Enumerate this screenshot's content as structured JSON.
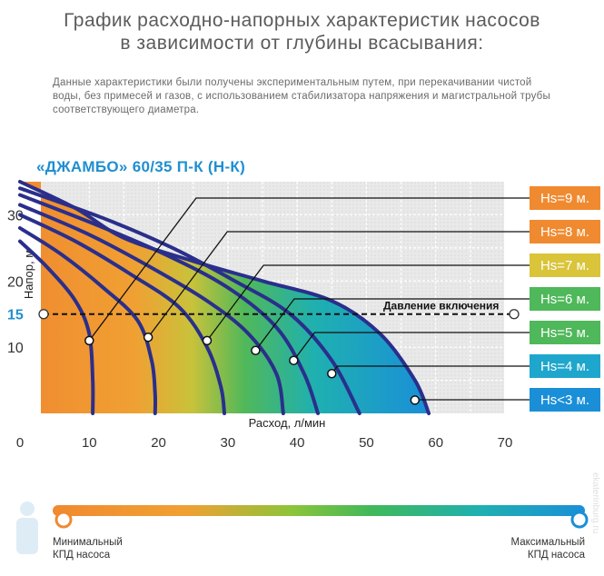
{
  "title_line1": "График расходно-напорных характеристик насосов",
  "title_line2": "в зависимости от глубины всасывания:",
  "description": "Данные характеристики были получены экспериментальным путем, при перекачивании чистой воды, без примесей и газов, с использованием стабилизатора напряжения и магистральной трубы соответствующего диаметра.",
  "model": "«ДЖАМБО» 60/35 П-К (Н-К)",
  "pressure_label": "Давление включения",
  "efficiency_min": "Минимальный\nКПД насоса",
  "efficiency_max": "Максимальный\nКПД насоса",
  "watermark": "ekaterinburg.ru",
  "colors": {
    "orange": "#f08a30",
    "yellow": "#d9c43a",
    "green": "#4fb85a",
    "cyan": "#1fa6cc",
    "blue": "#1a8fd8",
    "curve": "#2a2f8c",
    "axis_text": "#333333",
    "highlight": "#1f8fd0"
  },
  "chart_data": {
    "type": "line",
    "title": "«ДЖАМБО» 60/35 П-К (Н-К)",
    "xlabel": "Расход, л/мин",
    "ylabel": "Напор, м",
    "xlim": [
      0,
      70
    ],
    "ylim": [
      0,
      35
    ],
    "x_ticks": [
      0,
      10,
      20,
      30,
      40,
      50,
      60,
      70
    ],
    "y_ticks": [
      10,
      15,
      20,
      30
    ],
    "highlight_y": 15,
    "reference_line": {
      "y": 15,
      "label": "Давление включения",
      "style": "dashed"
    },
    "grid": true,
    "series": [
      {
        "name": "Hs=9 м.",
        "label_color": "#f08a30",
        "points": [
          [
            0,
            26
          ],
          [
            4,
            22
          ],
          [
            8,
            17
          ],
          [
            10,
            12
          ],
          [
            10.5,
            5
          ],
          [
            10.5,
            0
          ]
        ]
      },
      {
        "name": "Hs=8 м.",
        "label_color": "#f08a30",
        "points": [
          [
            0,
            28
          ],
          [
            6,
            24
          ],
          [
            12,
            19
          ],
          [
            17,
            14
          ],
          [
            19,
            8
          ],
          [
            19.5,
            3
          ],
          [
            19.5,
            0
          ]
        ]
      },
      {
        "name": "Hs=7 м.",
        "label_color": "#d9c43a",
        "points": [
          [
            0,
            30
          ],
          [
            8,
            26
          ],
          [
            16,
            21
          ],
          [
            23,
            16
          ],
          [
            27,
            10
          ],
          [
            29,
            4
          ],
          [
            29.5,
            0
          ]
        ]
      },
      {
        "name": "Hs=6 м.",
        "label_color": "#4fb85a",
        "points": [
          [
            0,
            31.5
          ],
          [
            10,
            27
          ],
          [
            19,
            22
          ],
          [
            27,
            17
          ],
          [
            33,
            12
          ],
          [
            37,
            6
          ],
          [
            38,
            0
          ]
        ]
      },
      {
        "name": "Hs=5 м.",
        "label_color": "#4fb85a",
        "points": [
          [
            0,
            33
          ],
          [
            11,
            28.5
          ],
          [
            21,
            24
          ],
          [
            30,
            19
          ],
          [
            37,
            13
          ],
          [
            41,
            6
          ],
          [
            43,
            0
          ]
        ]
      },
      {
        "name": "Hs=4 м.",
        "label_color": "#1fa6cc",
        "points": [
          [
            0,
            34
          ],
          [
            12,
            29.5
          ],
          [
            22,
            25
          ],
          [
            31,
            20
          ],
          [
            39,
            15
          ],
          [
            45,
            8
          ],
          [
            49,
            0
          ]
        ]
      },
      {
        "name": "Hs<3 м.",
        "label_color": "#1a8fd8",
        "points": [
          [
            0,
            35
          ],
          [
            8,
            31
          ],
          [
            15,
            26.5
          ],
          [
            25,
            23
          ],
          [
            35,
            20
          ],
          [
            45,
            17
          ],
          [
            52,
            12
          ],
          [
            57,
            5
          ],
          [
            59,
            0
          ]
        ]
      }
    ],
    "markers": [
      {
        "series": "Hs=9 м.",
        "x": 10,
        "y": 11
      },
      {
        "series": "Hs=8 м.",
        "x": 18.5,
        "y": 11.5
      },
      {
        "series": "Hs=7 м.",
        "x": 27,
        "y": 11
      },
      {
        "series": "Hs=6 м.",
        "x": 34,
        "y": 9.5
      },
      {
        "series": "Hs=5 м.",
        "x": 39.5,
        "y": 8
      },
      {
        "series": "Hs=4 м.",
        "x": 45,
        "y": 6
      },
      {
        "series": "Hs<3 м.",
        "x": 57,
        "y": 2
      }
    ]
  }
}
